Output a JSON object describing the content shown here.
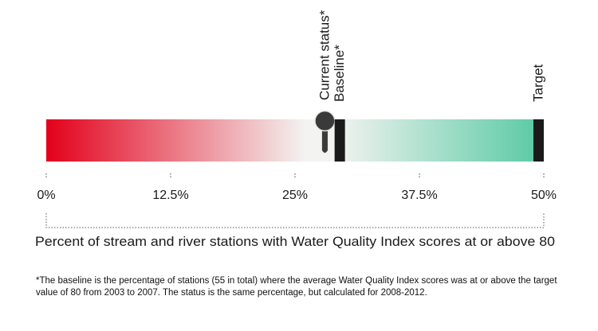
{
  "chart_data": {
    "type": "bar",
    "xlim": [
      0,
      50
    ],
    "x_unit": "%",
    "tick_labels": [
      "0%",
      "12.5%",
      "25%",
      "37.5%",
      "50%"
    ],
    "tick_values": [
      0,
      12.5,
      25,
      37.5,
      50
    ],
    "xlabel": "Percent of stream and river stations with Water Quality Index scores at or above 80",
    "markers": [
      {
        "label": "Current status*",
        "value": 28,
        "style": "pin"
      },
      {
        "label": "Baseline*",
        "value": 29.5,
        "style": "bar"
      },
      {
        "label": "Target",
        "value": 50,
        "style": "bar"
      }
    ],
    "gradient": {
      "red": "#e3001b",
      "light": "#f3f3f1",
      "green": "#57c9a3"
    }
  },
  "footnote": "*The baseline is the percentage of stations (55 in total) where the average Water Quality Index scores was at or above the target value of 80 from 2003 to 2007. The status is the same percentage, but calculated for 2008-2012."
}
